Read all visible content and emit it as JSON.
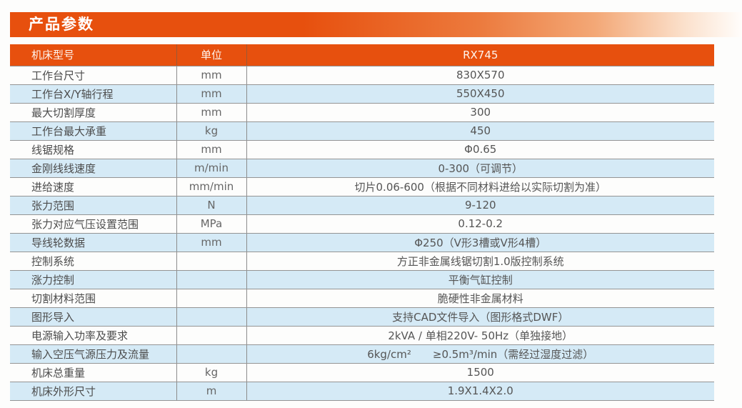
{
  "page": {
    "section_title": "产品参数"
  },
  "colors": {
    "accent_orange": "#e7500e",
    "row_blue": "#d5eaf6",
    "border_gray": "#8f8f8f",
    "text_gray": "#4c4c4c"
  },
  "table": {
    "columns": [
      "机床型号",
      "单位",
      "RX745"
    ],
    "rows": [
      {
        "param": "工作台尺寸",
        "unit": "mm",
        "value": "830X570"
      },
      {
        "param": "工作台X/Y轴行程",
        "unit": "mm",
        "value": "550X450"
      },
      {
        "param": "最大切割厚度",
        "unit": "mm",
        "value": "300"
      },
      {
        "param": "工作台最大承重",
        "unit": "kg",
        "value": "450"
      },
      {
        "param": "线锯规格",
        "unit": "mm",
        "value": "Φ0.65"
      },
      {
        "param": "金刚线线速度",
        "unit": "m/min",
        "value": "0-300（可调节）"
      },
      {
        "param": "进给速度",
        "unit": "mm/min",
        "value": "切片0.06-600（根据不同材料进给以实际切割为准）"
      },
      {
        "param": "张力范围",
        "unit": "N",
        "value": "9-120"
      },
      {
        "param": "张力对应气压设置范围",
        "unit": "MPa",
        "value": "0.12-0.2"
      },
      {
        "param": "导线轮数据",
        "unit": "mm",
        "value": "Φ250（V形3槽或V形4槽）"
      },
      {
        "param": "控制系统",
        "unit": "",
        "value": "方正非金属线锯切割1.0版控制系统"
      },
      {
        "param": "涨力控制",
        "unit": "",
        "value": "平衡气缸控制"
      },
      {
        "param": "切割材料范围",
        "unit": "",
        "value": "脆硬性非金属材料"
      },
      {
        "param": "图形导入",
        "unit": "",
        "value": "支持CAD文件导入（图形格式DWF）"
      },
      {
        "param": "电源输入功率及要求",
        "unit": "",
        "value": "2kVA / 单相220V- 50Hz（单独接地）"
      },
      {
        "param": "输入空压气源压力及流量",
        "unit": "",
        "value": "6kg/cm²　　≥0.5m³/min（需经过湿度过滤）"
      },
      {
        "param": "机床总重量",
        "unit": "kg",
        "value": "1500"
      },
      {
        "param": "机床外形尺寸",
        "unit": "m",
        "value": "1.9X1.4X2.0"
      }
    ]
  }
}
